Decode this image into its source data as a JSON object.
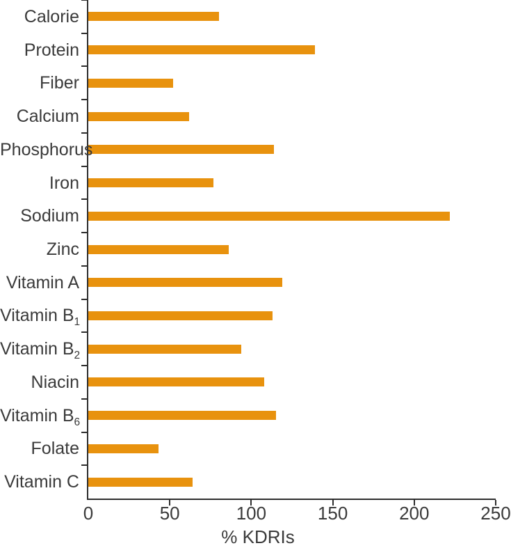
{
  "chart_data": {
    "type": "bar",
    "orientation": "horizontal",
    "title": "",
    "xlabel": "% KDRIs",
    "ylabel": "",
    "xlim": [
      0,
      250
    ],
    "x_ticks": [
      0,
      50,
      100,
      150,
      200,
      250
    ],
    "grid": false,
    "legend": false,
    "categories": [
      "Calorie",
      "Protein",
      "Fiber",
      "Calcium",
      "Phosphorus",
      "Iron",
      "Sodium",
      "Zinc",
      "Vitamin A",
      "Vitamin B_1",
      "Vitamin B_2",
      "Niacin",
      "Vitamin B_6",
      "Folate",
      "Vitamin C"
    ],
    "values": [
      80,
      139,
      52,
      62,
      114,
      77,
      222,
      86,
      119,
      113,
      94,
      108,
      115,
      43,
      64
    ],
    "bar_color": "#e8920e",
    "axis_color": "#2d2d2d",
    "text_color": "#3a3a3a"
  }
}
